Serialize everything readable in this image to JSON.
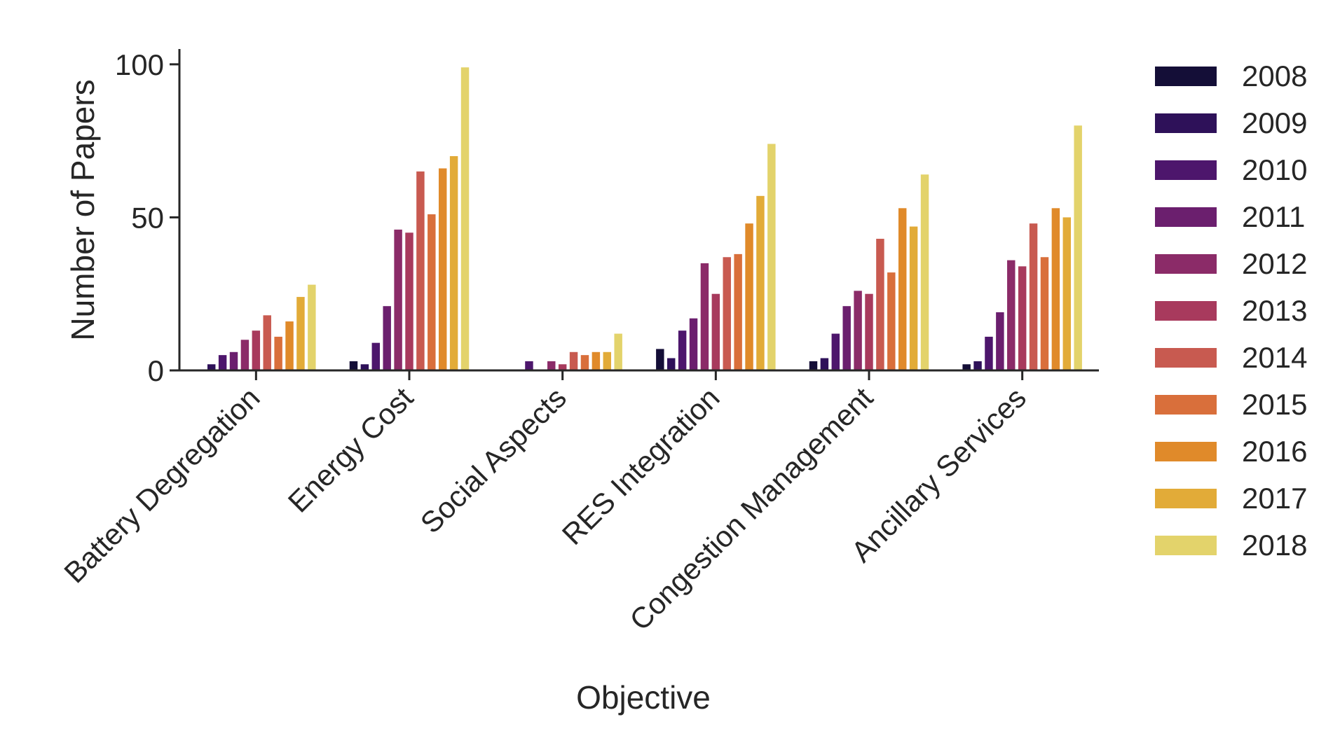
{
  "chart_data": {
    "type": "bar",
    "title": "",
    "xlabel": "Objective",
    "ylabel": "Number of Papers",
    "ylim": [
      0,
      105
    ],
    "yticks": [
      0,
      50,
      100
    ],
    "grid": false,
    "legend_position": "right",
    "categories": [
      "Battery Degregation",
      "Energy Cost",
      "Social Aspects",
      "RES Integration",
      "Congestion Management",
      "Ancillary Services"
    ],
    "series": [
      {
        "name": "2008",
        "color": "#140e37",
        "values": [
          0,
          3,
          0,
          7,
          3,
          2
        ]
      },
      {
        "name": "2009",
        "color": "#2e1159",
        "values": [
          2,
          2,
          0,
          4,
          4,
          3
        ]
      },
      {
        "name": "2010",
        "color": "#4d166c",
        "values": [
          5,
          9,
          3,
          13,
          12,
          11
        ]
      },
      {
        "name": "2011",
        "color": "#6b1f6e",
        "values": [
          6,
          21,
          0,
          17,
          21,
          19
        ]
      },
      {
        "name": "2012",
        "color": "#8b2b68",
        "values": [
          10,
          46,
          3,
          35,
          26,
          36
        ]
      },
      {
        "name": "2013",
        "color": "#a83a5d",
        "values": [
          13,
          45,
          2,
          25,
          25,
          34
        ]
      },
      {
        "name": "2014",
        "color": "#c85a50",
        "values": [
          18,
          65,
          6,
          37,
          43,
          48
        ]
      },
      {
        "name": "2015",
        "color": "#d96f3b",
        "values": [
          11,
          51,
          5,
          38,
          32,
          37
        ]
      },
      {
        "name": "2016",
        "color": "#e08a2a",
        "values": [
          16,
          66,
          6,
          48,
          53,
          53
        ]
      },
      {
        "name": "2017",
        "color": "#e2ab38",
        "values": [
          24,
          70,
          6,
          57,
          47,
          50
        ]
      },
      {
        "name": "2018",
        "color": "#e3d36b",
        "values": [
          28,
          99,
          12,
          74,
          64,
          80
        ]
      }
    ]
  }
}
